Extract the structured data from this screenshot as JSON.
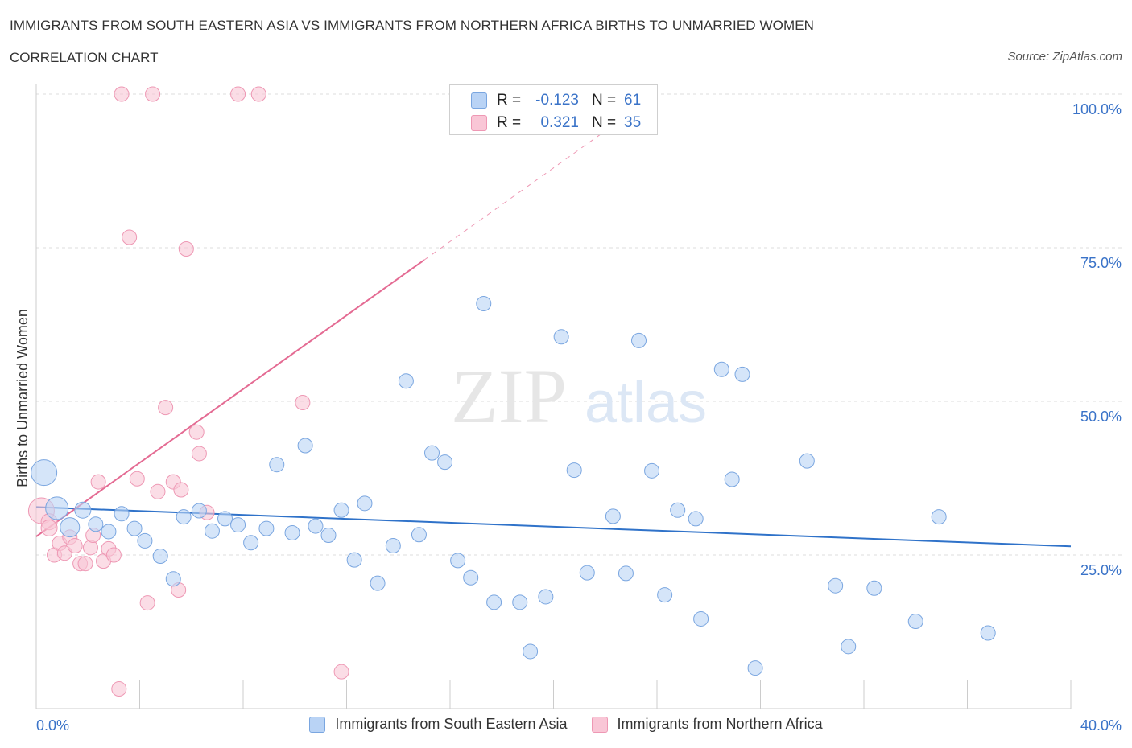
{
  "title": "IMMIGRANTS FROM SOUTH EASTERN ASIA VS IMMIGRANTS FROM NORTHERN AFRICA BIRTHS TO UNMARRIED WOMEN",
  "subtitle": "CORRELATION CHART",
  "source": "Source: ZipAtlas.com",
  "watermark": {
    "zip": "ZIP",
    "atlas": "atlas"
  },
  "colors": {
    "blue_fill": "#b9d3f5",
    "blue_stroke": "#7aa6e0",
    "blue_line": "#2f72c9",
    "pink_fill": "#f9c6d6",
    "pink_stroke": "#ee98b4",
    "pink_line": "#e46b93",
    "grid": "#dddddd",
    "tick_text": "#3a73c8"
  },
  "stats": {
    "series1": {
      "r_label": "R =",
      "r_value": "-0.123",
      "n_label": "N =",
      "n_value": "61"
    },
    "series2": {
      "r_label": "R =",
      "r_value": "0.321",
      "n_label": "N =",
      "n_value": "35"
    }
  },
  "chart_data": {
    "type": "scatter",
    "ylabel": "Births to Unmarried Women",
    "xlabel": "",
    "xlim": [
      0,
      40
    ],
    "ylim": [
      0,
      100
    ],
    "x_tick_labels": [
      {
        "value": 0,
        "label": "0.0%"
      },
      {
        "value": 40,
        "label": "40.0%"
      }
    ],
    "y_tick_labels": [
      {
        "value": 25,
        "label": "25.0%"
      },
      {
        "value": 50,
        "label": "50.0%"
      },
      {
        "value": 75,
        "label": "75.0%"
      },
      {
        "value": 100,
        "label": "100.0%"
      }
    ],
    "series": [
      {
        "name": "Immigrants from South Eastern Asia",
        "trend": {
          "x0": 0,
          "y0": 32.8,
          "x1": 40,
          "y1": 26.4
        },
        "points": [
          [
            0.3,
            38.4,
            16
          ],
          [
            0.8,
            32.6,
            14
          ],
          [
            1.3,
            29.5,
            12
          ],
          [
            1.8,
            32.3,
            10
          ],
          [
            2.3,
            30.0,
            9
          ],
          [
            2.8,
            28.8,
            9
          ],
          [
            3.3,
            31.7,
            9
          ],
          [
            3.8,
            29.3,
            9
          ],
          [
            4.2,
            27.3,
            9
          ],
          [
            4.8,
            24.8,
            9
          ],
          [
            5.3,
            21.1,
            9
          ],
          [
            5.7,
            31.2,
            9
          ],
          [
            6.3,
            32.2,
            9
          ],
          [
            6.8,
            28.9,
            9
          ],
          [
            7.3,
            30.9,
            9
          ],
          [
            7.8,
            29.9,
            9
          ],
          [
            8.3,
            27.0,
            9
          ],
          [
            8.9,
            29.3,
            9
          ],
          [
            9.3,
            39.7,
            9
          ],
          [
            9.9,
            28.6,
            9
          ],
          [
            10.4,
            42.8,
            9
          ],
          [
            10.8,
            29.7,
            9
          ],
          [
            11.3,
            28.2,
            9
          ],
          [
            11.8,
            32.3,
            9
          ],
          [
            12.3,
            24.2,
            9
          ],
          [
            12.7,
            33.4,
            9
          ],
          [
            13.2,
            20.4,
            9
          ],
          [
            13.8,
            26.5,
            9
          ],
          [
            14.3,
            53.3,
            9
          ],
          [
            14.8,
            28.3,
            9
          ],
          [
            15.3,
            41.6,
            9
          ],
          [
            15.8,
            40.1,
            9
          ],
          [
            16.3,
            24.1,
            9
          ],
          [
            16.8,
            21.3,
            9
          ],
          [
            17.3,
            65.9,
            9
          ],
          [
            17.7,
            17.3,
            9
          ],
          [
            18.7,
            17.3,
            9
          ],
          [
            19.1,
            9.3,
            9
          ],
          [
            19.7,
            18.2,
            9
          ],
          [
            20.3,
            60.5,
            9
          ],
          [
            20.8,
            38.8,
            9
          ],
          [
            21.3,
            22.1,
            9
          ],
          [
            22.3,
            31.3,
            9
          ],
          [
            22.8,
            22.0,
            9
          ],
          [
            23.3,
            59.9,
            9
          ],
          [
            23.8,
            38.7,
            9
          ],
          [
            24.3,
            18.5,
            9
          ],
          [
            24.8,
            32.3,
            9
          ],
          [
            25.5,
            30.9,
            9
          ],
          [
            25.7,
            14.6,
            9
          ],
          [
            26.5,
            55.2,
            9
          ],
          [
            26.9,
            37.3,
            9
          ],
          [
            27.3,
            54.4,
            9
          ],
          [
            27.8,
            6.6,
            9
          ],
          [
            29.8,
            40.3,
            9
          ],
          [
            30.9,
            20.0,
            9
          ],
          [
            31.4,
            10.1,
            9
          ],
          [
            32.4,
            19.6,
            9
          ],
          [
            34.0,
            14.2,
            9
          ],
          [
            34.9,
            31.2,
            9
          ],
          [
            36.8,
            12.3,
            9
          ]
        ]
      },
      {
        "name": "Immigrants from Northern Africa",
        "trend": {
          "x0": 0,
          "y0": 28.0,
          "x1": 15,
          "y1": 73.0,
          "dash_x1": 23,
          "dash_y1": 97.0
        },
        "points": [
          [
            0.2,
            32.2,
            16
          ],
          [
            0.5,
            30.4,
            10
          ],
          [
            0.5,
            29.4,
            10
          ],
          [
            0.7,
            25.0,
            9
          ],
          [
            0.9,
            26.9,
            9
          ],
          [
            1.1,
            25.3,
            9
          ],
          [
            1.3,
            27.9,
            9
          ],
          [
            1.5,
            26.5,
            9
          ],
          [
            1.7,
            23.6,
            9
          ],
          [
            1.9,
            23.6,
            9
          ],
          [
            2.1,
            26.2,
            9
          ],
          [
            2.2,
            28.2,
            9
          ],
          [
            2.4,
            36.9,
            9
          ],
          [
            2.6,
            24.0,
            9
          ],
          [
            2.8,
            26.0,
            9
          ],
          [
            3.0,
            25.0,
            9
          ],
          [
            3.2,
            3.2,
            9
          ],
          [
            3.3,
            100.0,
            9
          ],
          [
            3.6,
            76.7,
            9
          ],
          [
            3.9,
            37.4,
            9
          ],
          [
            4.3,
            17.2,
            9
          ],
          [
            4.5,
            100.0,
            9
          ],
          [
            4.7,
            35.3,
            9
          ],
          [
            5.0,
            49.0,
            9
          ],
          [
            5.3,
            36.9,
            9
          ],
          [
            5.5,
            19.3,
            9
          ],
          [
            5.6,
            35.6,
            9
          ],
          [
            5.8,
            74.8,
            9
          ],
          [
            6.2,
            45.0,
            9
          ],
          [
            6.3,
            41.5,
            9
          ],
          [
            6.6,
            31.9,
            9
          ],
          [
            7.8,
            100.0,
            9
          ],
          [
            8.6,
            100.0,
            9
          ],
          [
            10.3,
            49.8,
            9
          ],
          [
            11.8,
            6.0,
            9
          ]
        ]
      }
    ]
  }
}
